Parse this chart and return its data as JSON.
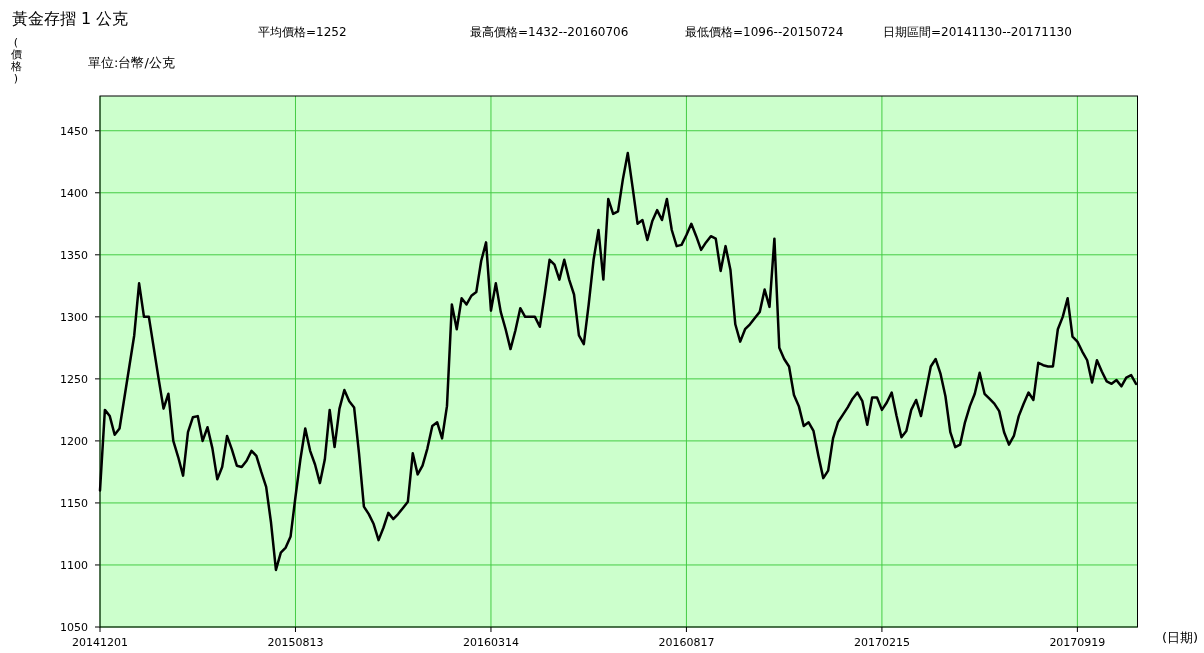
{
  "chart_data": {
    "type": "line",
    "title": "黃金存摺 1 公克",
    "subtitle": "單位:台幣/公克",
    "ylabel": "(價格)",
    "xlabel": "(日期)",
    "annotations": [
      "平均價格=1252",
      "最高價格=1432--20160706",
      "最低價格=1096--20150724",
      "日期區間=20141130--20171130"
    ],
    "categories": [
      "20141201",
      null,
      null,
      null,
      null,
      null,
      null,
      null,
      null,
      null,
      null,
      null,
      null,
      null,
      null,
      null,
      null,
      null,
      null,
      null,
      null,
      null,
      null,
      null,
      null,
      null,
      null,
      null,
      null,
      null,
      null,
      null,
      null,
      null,
      null,
      null,
      null,
      null,
      null,
      null,
      "20150813",
      null,
      null,
      null,
      null,
      null,
      null,
      null,
      null,
      null,
      null,
      null,
      null,
      null,
      null,
      null,
      null,
      null,
      null,
      null,
      null,
      null,
      null,
      null,
      null,
      null,
      null,
      null,
      null,
      null,
      null,
      null,
      null,
      null,
      null,
      null,
      null,
      null,
      null,
      null,
      "20160314",
      null,
      null,
      null,
      null,
      null,
      null,
      null,
      null,
      null,
      null,
      null,
      null,
      null,
      null,
      null,
      null,
      null,
      null,
      null,
      null,
      null,
      null,
      null,
      null,
      null,
      null,
      null,
      null,
      null,
      null,
      null,
      null,
      null,
      null,
      null,
      null,
      null,
      null,
      null,
      "20160817",
      null,
      null,
      null,
      null,
      null,
      null,
      null,
      null,
      null,
      null,
      null,
      null,
      null,
      null,
      null,
      null,
      null,
      null,
      null,
      null,
      null,
      null,
      null,
      null,
      null,
      null,
      null,
      null,
      null,
      null,
      null,
      null,
      null,
      null,
      null,
      null,
      null,
      null,
      null,
      "20170215",
      null,
      null,
      null,
      null,
      null,
      null,
      null,
      null,
      null,
      null,
      null,
      null,
      null,
      null,
      null,
      null,
      null,
      null,
      null,
      null,
      null,
      null,
      null,
      null,
      null,
      null,
      null,
      null,
      null,
      null,
      null,
      null,
      null,
      null,
      null,
      null,
      null,
      null,
      null,
      "20170919",
      null,
      null,
      null,
      null,
      null,
      null,
      null,
      null,
      null,
      null,
      null,
      null
    ],
    "series": [
      {
        "color": "#000000",
        "values": [
          1160,
          1225,
          1220,
          1205,
          1210,
          1235,
          1260,
          1285,
          1327,
          1300,
          1300,
          1275,
          1250,
          1226,
          1238,
          1200,
          1187,
          1172,
          1207,
          1219,
          1220,
          1200,
          1211,
          1194,
          1169,
          1179,
          1204,
          1193,
          1180,
          1179,
          1184,
          1192,
          1188,
          1175,
          1163,
          1134,
          1096,
          1110,
          1114,
          1123,
          1155,
          1185,
          1210,
          1192,
          1181,
          1166,
          1185,
          1225,
          1195,
          1226,
          1241,
          1232,
          1227,
          1190,
          1147,
          1141,
          1133,
          1120,
          1130,
          1142,
          1137,
          1141,
          1146,
          1151,
          1190,
          1173,
          1180,
          1194,
          1212,
          1215,
          1202,
          1228,
          1310,
          1290,
          1315,
          1310,
          1317,
          1320,
          1345,
          1360,
          1305,
          1327,
          1304,
          1290,
          1274,
          1289,
          1307,
          1300,
          1300,
          1300,
          1292,
          1318,
          1346,
          1342,
          1330,
          1346,
          1330,
          1318,
          1285,
          1278,
          1310,
          1346,
          1370,
          1330,
          1395,
          1383,
          1385,
          1411,
          1432,
          1404,
          1375,
          1378,
          1362,
          1377,
          1386,
          1378,
          1395,
          1370,
          1357,
          1358,
          1366,
          1375,
          1365,
          1354,
          1360,
          1365,
          1363,
          1337,
          1357,
          1338,
          1294,
          1280,
          1290,
          1294,
          1299,
          1304,
          1322,
          1308,
          1363,
          1275,
          1266,
          1260,
          1237,
          1228,
          1212,
          1215,
          1208,
          1188,
          1170,
          1176,
          1202,
          1215,
          1221,
          1227,
          1234,
          1239,
          1232,
          1213,
          1235,
          1235,
          1225,
          1231,
          1239,
          1220,
          1203,
          1208,
          1225,
          1233,
          1220,
          1240,
          1260,
          1266,
          1254,
          1236,
          1207,
          1195,
          1197,
          1215,
          1228,
          1238,
          1255,
          1238,
          1234,
          1230,
          1224,
          1207,
          1197,
          1204,
          1220,
          1230,
          1239,
          1233,
          1263,
          1261,
          1260,
          1260,
          1290,
          1300,
          1315,
          1284,
          1280,
          1272,
          1265,
          1247,
          1265,
          1256,
          1248,
          1246,
          1249,
          1244,
          1251,
          1253,
          1246
        ]
      }
    ],
    "ylim": [
      1050,
      1478
    ],
    "yticks": [
      1050,
      1100,
      1150,
      1200,
      1250,
      1300,
      1350,
      1400,
      1450
    ],
    "grid": true
  }
}
